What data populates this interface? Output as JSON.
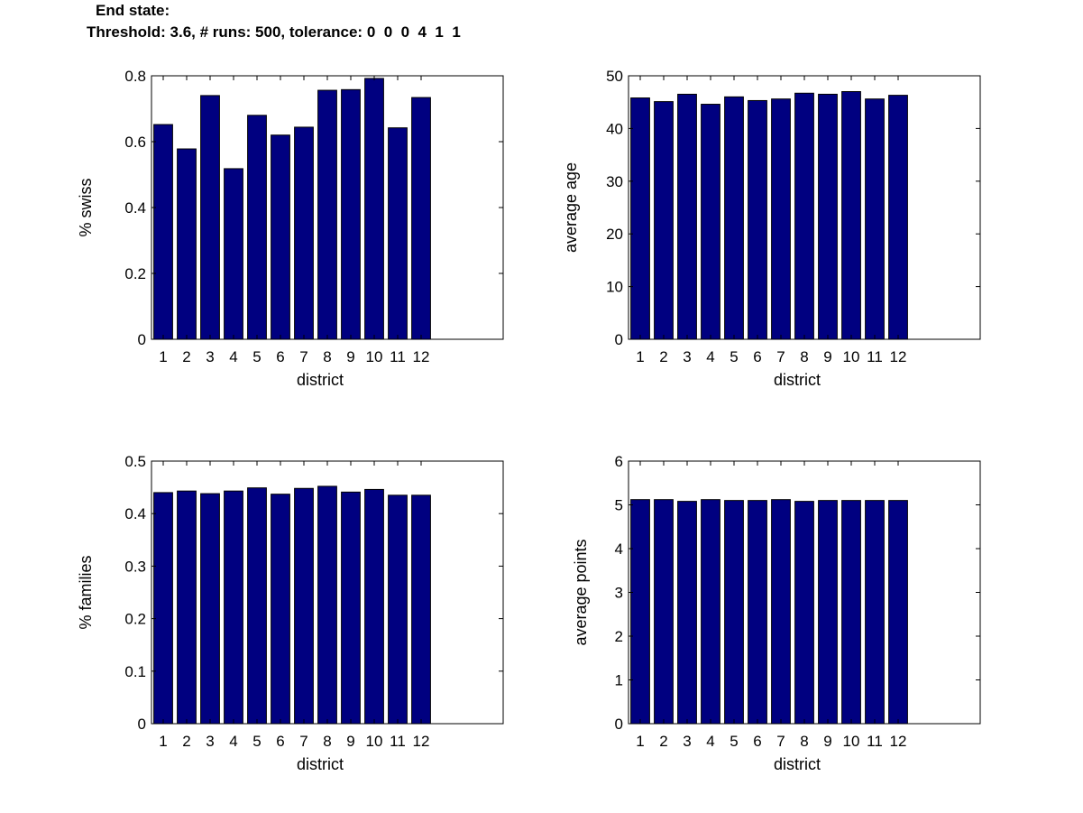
{
  "figure_title": {
    "line1": "End state:",
    "line2": "Threshold: 3.6, # runs: 500, tolerance: 0  0  0  4  1  1"
  },
  "colors": {
    "bar": "#000080",
    "axes": "#000000",
    "background": "#ffffff"
  },
  "chart_data": [
    {
      "type": "bar",
      "title": "",
      "xlabel": "district",
      "ylabel": "% swiss",
      "categories": [
        "1",
        "2",
        "3",
        "4",
        "5",
        "6",
        "7",
        "8",
        "9",
        "10",
        "11",
        "12"
      ],
      "values": [
        0.652,
        0.578,
        0.74,
        0.518,
        0.68,
        0.62,
        0.644,
        0.756,
        0.758,
        0.792,
        0.642,
        0.734
      ],
      "xlim": [
        0.5,
        15.5
      ],
      "ylim": [
        0,
        0.8
      ],
      "yticks": [
        "0",
        "0.2",
        "0.4",
        "0.6",
        "0.8"
      ],
      "grid": false
    },
    {
      "type": "bar",
      "title": "",
      "xlabel": "district",
      "ylabel": "average age",
      "categories": [
        "1",
        "2",
        "3",
        "4",
        "5",
        "6",
        "7",
        "8",
        "9",
        "10",
        "11",
        "12"
      ],
      "values": [
        45.8,
        45.1,
        46.5,
        44.6,
        46.0,
        45.3,
        45.6,
        46.7,
        46.5,
        47.0,
        45.6,
        46.3
      ],
      "xlim": [
        0.5,
        15.5
      ],
      "ylim": [
        0,
        50
      ],
      "yticks": [
        "0",
        "10",
        "20",
        "30",
        "40",
        "50"
      ],
      "grid": false
    },
    {
      "type": "bar",
      "title": "",
      "xlabel": "district",
      "ylabel": "% families",
      "categories": [
        "1",
        "2",
        "3",
        "4",
        "5",
        "6",
        "7",
        "8",
        "9",
        "10",
        "11",
        "12"
      ],
      "values": [
        0.44,
        0.443,
        0.438,
        0.443,
        0.449,
        0.437,
        0.448,
        0.452,
        0.441,
        0.446,
        0.435,
        0.435
      ],
      "xlim": [
        0.5,
        15.5
      ],
      "ylim": [
        0,
        0.5
      ],
      "yticks": [
        "0",
        "0.1",
        "0.2",
        "0.3",
        "0.4",
        "0.5"
      ],
      "grid": false
    },
    {
      "type": "bar",
      "title": "",
      "xlabel": "district",
      "ylabel": "average points",
      "categories": [
        "1",
        "2",
        "3",
        "4",
        "5",
        "6",
        "7",
        "8",
        "9",
        "10",
        "11",
        "12"
      ],
      "values": [
        5.12,
        5.12,
        5.08,
        5.12,
        5.1,
        5.1,
        5.12,
        5.08,
        5.1,
        5.1,
        5.1,
        5.1
      ],
      "xlim": [
        0.5,
        15.5
      ],
      "ylim": [
        0,
        6
      ],
      "yticks": [
        "0",
        "1",
        "2",
        "3",
        "4",
        "5",
        "6"
      ],
      "grid": false
    }
  ]
}
